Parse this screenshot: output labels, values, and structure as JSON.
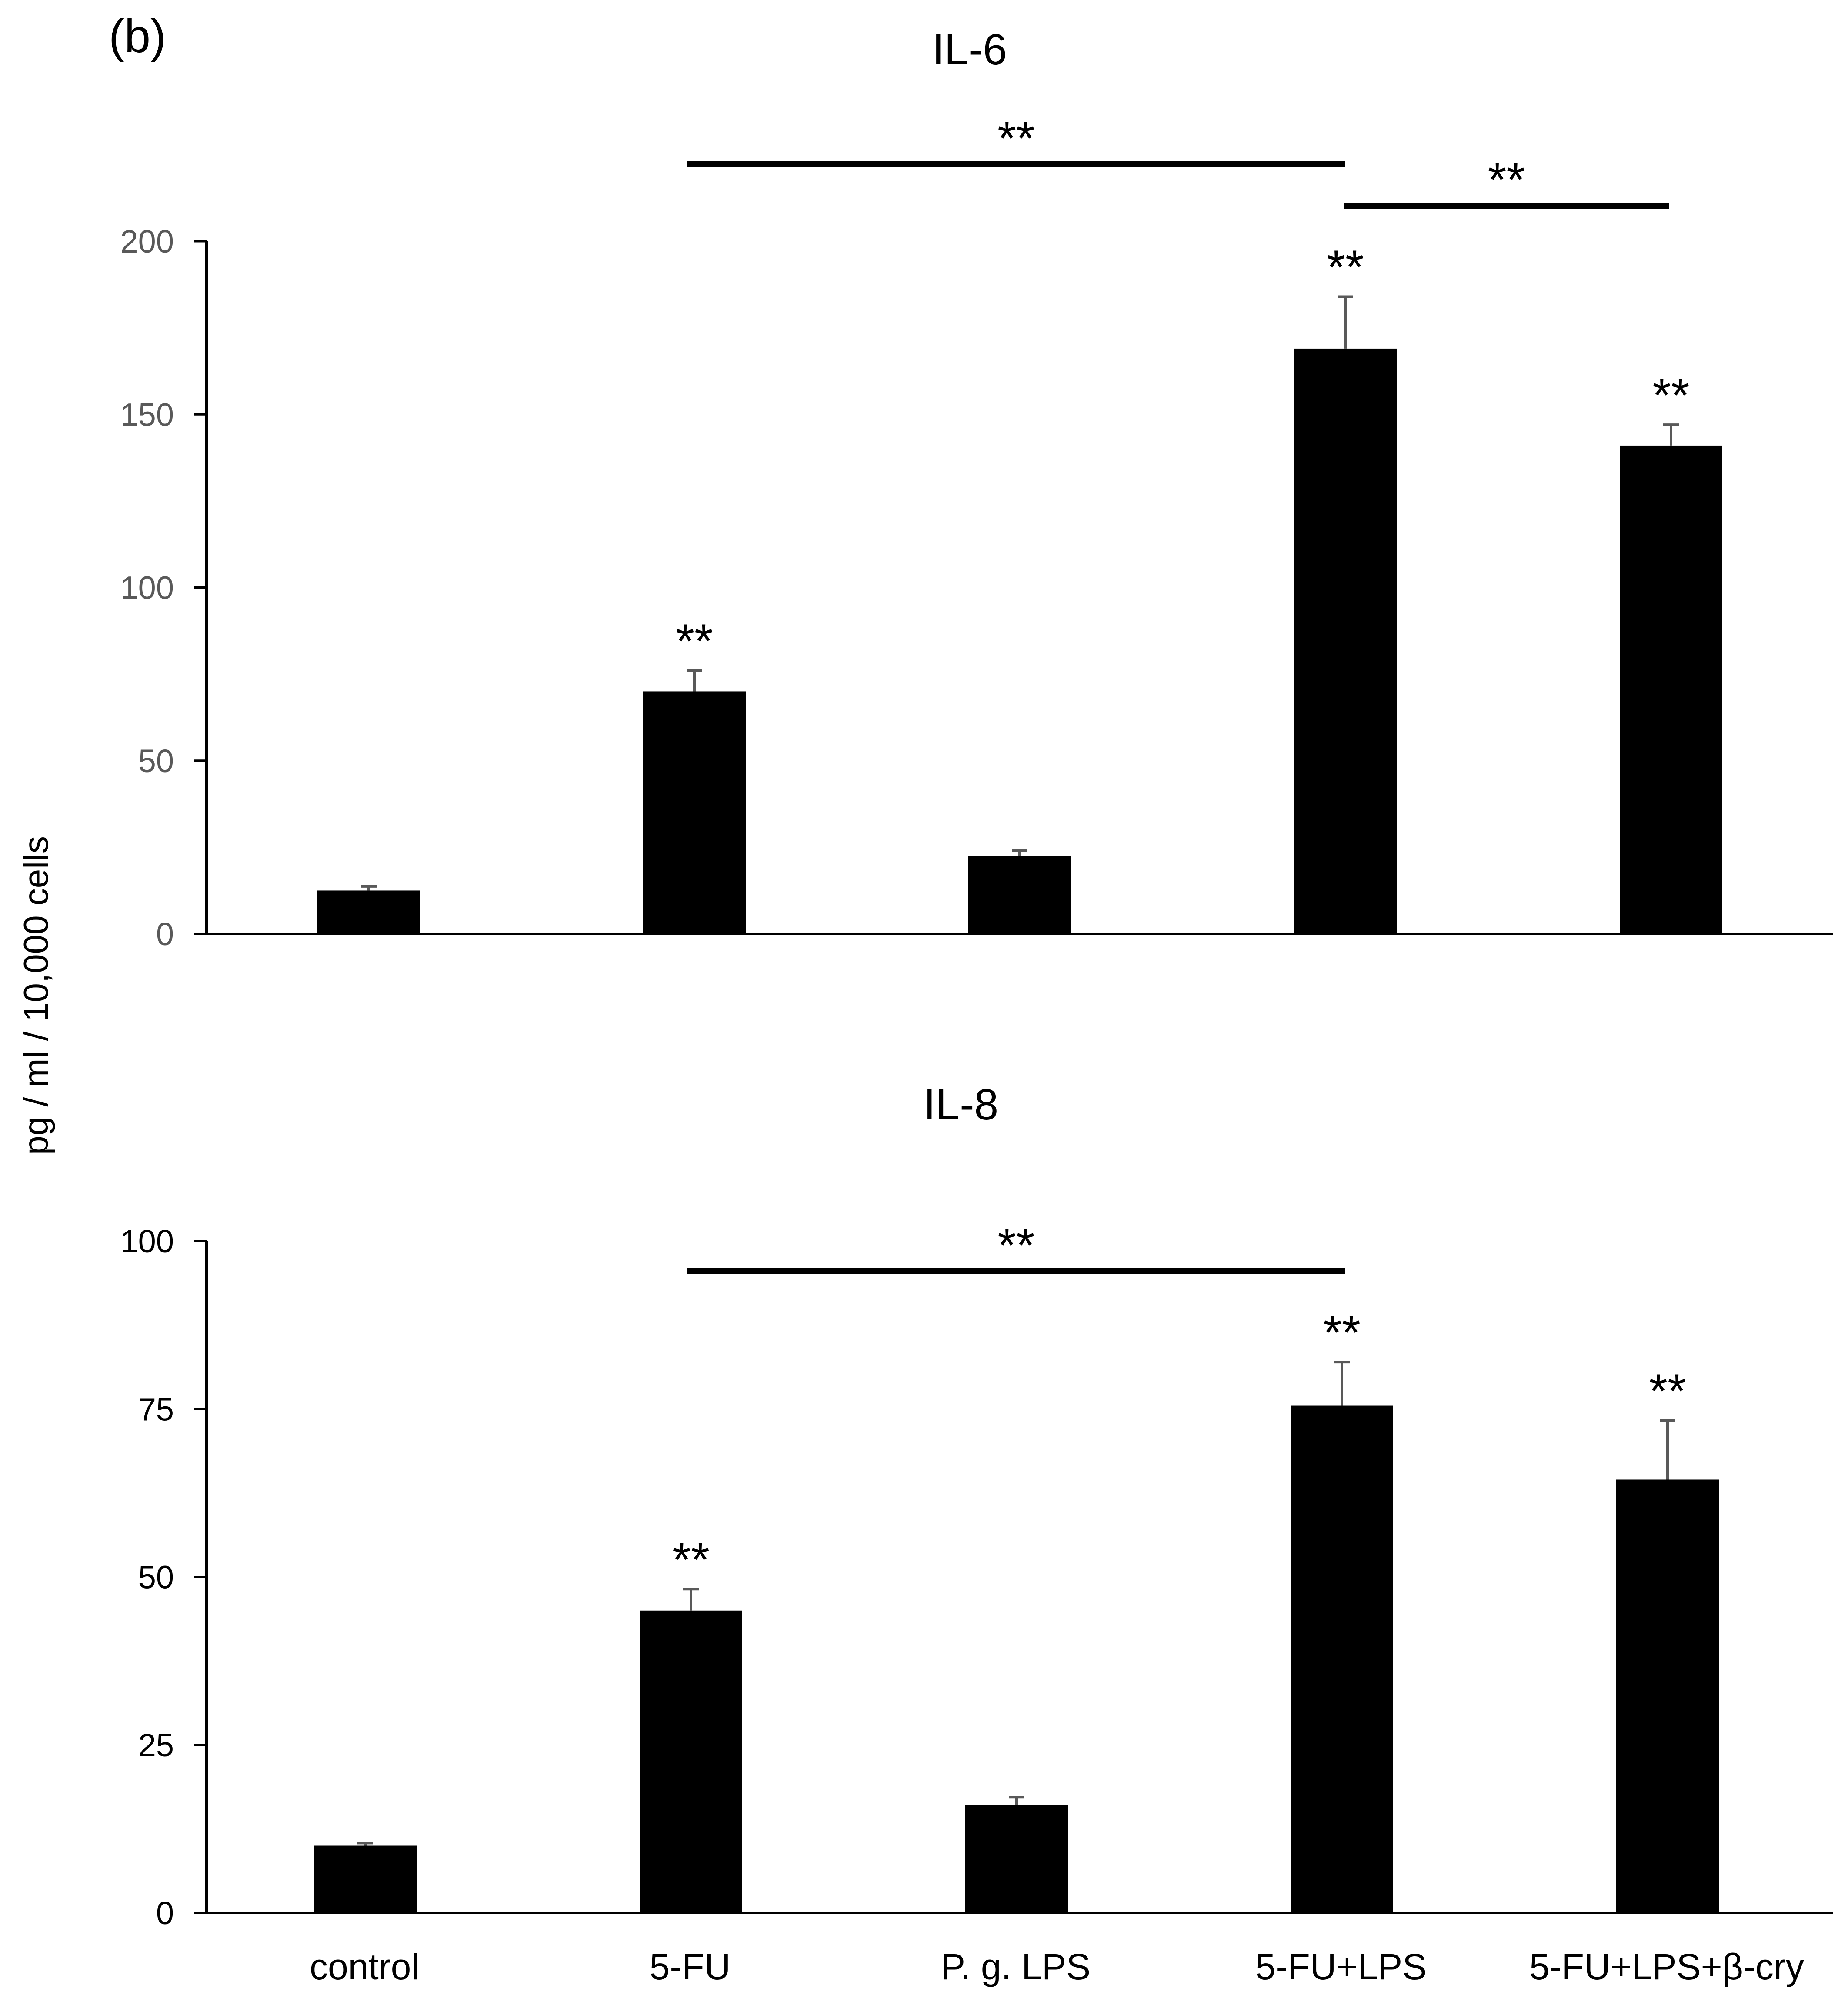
{
  "panel_label": "(b)",
  "y_axis_label": "pg / ml / 10,000 cells",
  "colors": {
    "bar": "#000000",
    "axis": "#000000",
    "error_bar": "#595959",
    "tick_text_il6": "#595959",
    "tick_text_il8": "#000000"
  },
  "chart_data": [
    {
      "type": "bar",
      "title": "IL-6",
      "categories": [
        "control",
        "5-FU",
        "P. g. LPS",
        "5-FU+LPS",
        "5-FU+LPS+β-cry"
      ],
      "values": [
        12.5,
        70,
        22.5,
        169,
        141
      ],
      "errors": [
        1.2,
        6,
        1.6,
        15,
        6
      ],
      "significance": [
        "",
        "**",
        "",
        "**",
        "**"
      ],
      "brackets": [
        {
          "from": 1,
          "to": 3,
          "label": "**"
        },
        {
          "from": 3,
          "to": 4,
          "label": "**"
        }
      ],
      "yticks": [
        0,
        50,
        100,
        150,
        200
      ],
      "ylim": [
        0,
        200
      ],
      "xlabel": "",
      "ylabel": "pg / ml / 10,000 cells"
    },
    {
      "type": "bar",
      "title": "IL-8",
      "categories": [
        "control",
        "5-FU",
        "P. g. LPS",
        "5-FU+LPS",
        "5-FU+LPS+β-cry"
      ],
      "values": [
        10,
        45,
        16,
        75.5,
        64.5
      ],
      "errors": [
        0.4,
        3.2,
        1.2,
        6.5,
        8.8
      ],
      "significance": [
        "",
        "**",
        "",
        "**",
        "**"
      ],
      "brackets": [
        {
          "from": 1,
          "to": 3,
          "label": "**"
        }
      ],
      "yticks": [
        0,
        25,
        50,
        75,
        100
      ],
      "ylim": [
        0,
        100
      ],
      "xlabel": "",
      "ylabel": "pg / ml / 10,000 cells",
      "show_category_labels": true
    }
  ]
}
